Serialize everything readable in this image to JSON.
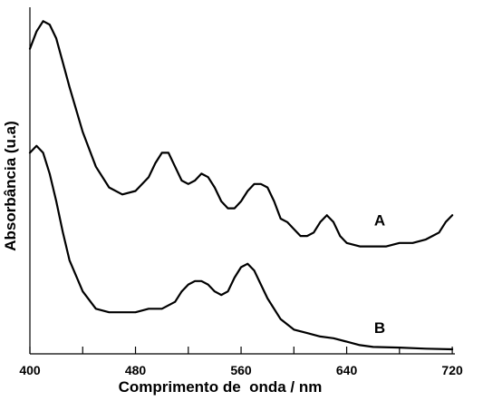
{
  "chart_data": {
    "type": "line",
    "xlabel": "Comprimento de  onda / nm",
    "ylabel": "Absorbância (u.a)",
    "xlim": [
      400,
      722
    ],
    "ylim": [
      0,
      1.0
    ],
    "x_ticks": [
      400,
      480,
      560,
      640,
      720
    ],
    "x_minor_ticks": [
      440,
      520,
      600,
      680
    ],
    "y_ticks_shown": false,
    "grid": false,
    "series": [
      {
        "name": "A",
        "points": [
          [
            400,
            0.88
          ],
          [
            405,
            0.93
          ],
          [
            410,
            0.96
          ],
          [
            415,
            0.95
          ],
          [
            420,
            0.91
          ],
          [
            425,
            0.84
          ],
          [
            430,
            0.77
          ],
          [
            440,
            0.64
          ],
          [
            450,
            0.54
          ],
          [
            460,
            0.48
          ],
          [
            470,
            0.46
          ],
          [
            480,
            0.47
          ],
          [
            490,
            0.51
          ],
          [
            495,
            0.55
          ],
          [
            500,
            0.58
          ],
          [
            505,
            0.58
          ],
          [
            510,
            0.54
          ],
          [
            515,
            0.5
          ],
          [
            520,
            0.49
          ],
          [
            525,
            0.5
          ],
          [
            530,
            0.52
          ],
          [
            535,
            0.51
          ],
          [
            540,
            0.48
          ],
          [
            545,
            0.44
          ],
          [
            550,
            0.42
          ],
          [
            555,
            0.42
          ],
          [
            560,
            0.44
          ],
          [
            565,
            0.47
          ],
          [
            570,
            0.49
          ],
          [
            575,
            0.49
          ],
          [
            580,
            0.48
          ],
          [
            585,
            0.44
          ],
          [
            590,
            0.39
          ],
          [
            595,
            0.38
          ],
          [
            600,
            0.36
          ],
          [
            605,
            0.34
          ],
          [
            610,
            0.34
          ],
          [
            615,
            0.35
          ],
          [
            620,
            0.38
          ],
          [
            625,
            0.4
          ],
          [
            630,
            0.38
          ],
          [
            635,
            0.34
          ],
          [
            640,
            0.32
          ],
          [
            650,
            0.31
          ],
          [
            660,
            0.31
          ],
          [
            670,
            0.31
          ],
          [
            680,
            0.32
          ],
          [
            690,
            0.32
          ],
          [
            700,
            0.33
          ],
          [
            705,
            0.34
          ],
          [
            710,
            0.35
          ],
          [
            715,
            0.38
          ],
          [
            720,
            0.4
          ]
        ]
      },
      {
        "name": "B",
        "points": [
          [
            400,
            0.58
          ],
          [
            405,
            0.6
          ],
          [
            410,
            0.58
          ],
          [
            415,
            0.52
          ],
          [
            420,
            0.44
          ],
          [
            425,
            0.35
          ],
          [
            430,
            0.27
          ],
          [
            440,
            0.18
          ],
          [
            450,
            0.13
          ],
          [
            460,
            0.12
          ],
          [
            470,
            0.12
          ],
          [
            480,
            0.12
          ],
          [
            490,
            0.13
          ],
          [
            500,
            0.13
          ],
          [
            510,
            0.15
          ],
          [
            515,
            0.18
          ],
          [
            520,
            0.2
          ],
          [
            525,
            0.21
          ],
          [
            530,
            0.21
          ],
          [
            535,
            0.2
          ],
          [
            540,
            0.18
          ],
          [
            545,
            0.17
          ],
          [
            550,
            0.18
          ],
          [
            555,
            0.22
          ],
          [
            560,
            0.25
          ],
          [
            565,
            0.26
          ],
          [
            570,
            0.24
          ],
          [
            575,
            0.2
          ],
          [
            580,
            0.16
          ],
          [
            590,
            0.1
          ],
          [
            600,
            0.07
          ],
          [
            610,
            0.06
          ],
          [
            620,
            0.05
          ],
          [
            630,
            0.045
          ],
          [
            640,
            0.035
          ],
          [
            650,
            0.025
          ],
          [
            660,
            0.02
          ],
          [
            680,
            0.018
          ],
          [
            700,
            0.015
          ],
          [
            720,
            0.013
          ]
        ]
      }
    ],
    "series_labels": [
      {
        "text": "A",
        "x": 665,
        "y": 0.37
      },
      {
        "text": "B",
        "x": 665,
        "y": 0.06
      }
    ]
  }
}
